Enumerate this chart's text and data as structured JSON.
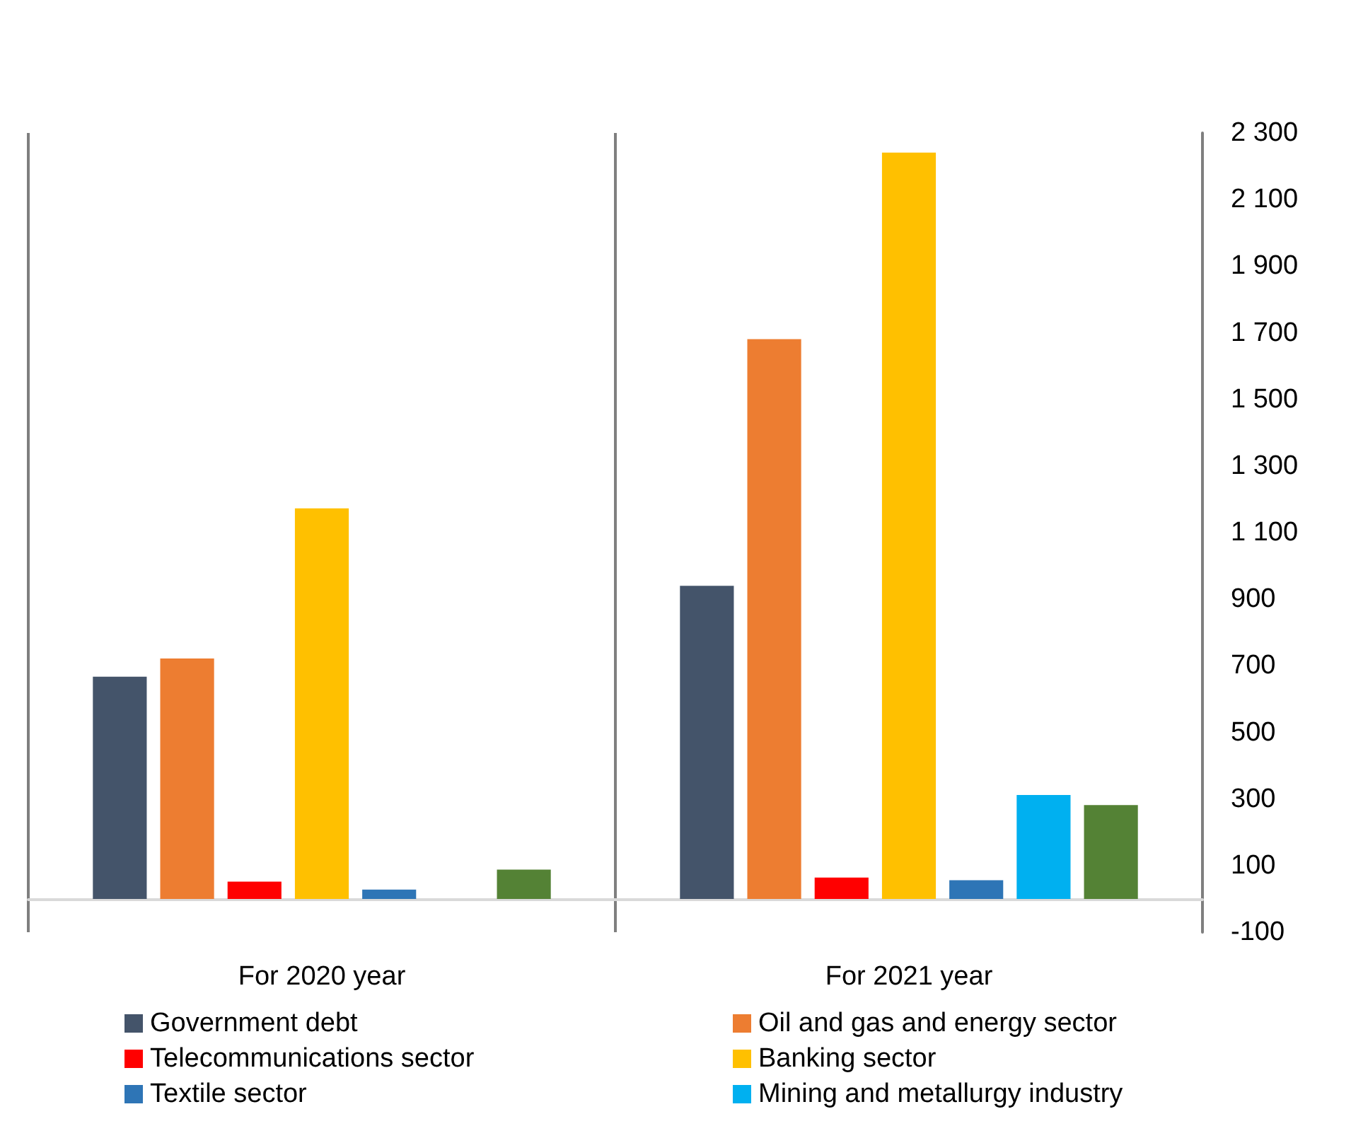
{
  "chart_data": {
    "type": "bar",
    "categories": [
      "For 2020 year",
      "For 2021 year"
    ],
    "series": [
      {
        "name": "Government debt",
        "color": "#44546a",
        "values": [
          667,
          940
        ]
      },
      {
        "name": "Oil and gas and energy sector",
        "color": "#ed7d31",
        "values": [
          722,
          1681
        ]
      },
      {
        "name": "Telecommunications sector",
        "color": "#ff0000",
        "values": [
          52,
          64
        ]
      },
      {
        "name": "Banking sector",
        "color": "#ffc000",
        "values": [
          1173,
          2241
        ]
      },
      {
        "name": "Textile sector",
        "color": "#2e75b6",
        "values": [
          28,
          56
        ]
      },
      {
        "name": "Mining and metallurgy industry",
        "color": "#00b0f0",
        "values": [
          null,
          312
        ]
      },
      {
        "color": "#548235",
        "values": [
          88,
          282
        ]
      }
    ],
    "ylim": [
      -100,
      2300
    ],
    "yticks": [
      {
        "value": -100,
        "label": "-100"
      },
      {
        "value": 100,
        "label": "100"
      },
      {
        "value": 300,
        "label": "300"
      },
      {
        "value": 500,
        "label": "500"
      },
      {
        "value": 700,
        "label": "700"
      },
      {
        "value": 900,
        "label": "900"
      },
      {
        "value": 1100,
        "label": "1 100"
      },
      {
        "value": 1300,
        "label": "1 300"
      },
      {
        "value": 1500,
        "label": "1 500"
      },
      {
        "value": 1700,
        "label": "1 700"
      },
      {
        "value": 1900,
        "label": "1 900"
      },
      {
        "value": 2100,
        "label": "2 100"
      },
      {
        "value": 2300,
        "label": "2 300"
      }
    ],
    "grid": "x",
    "legend": "bottom"
  }
}
